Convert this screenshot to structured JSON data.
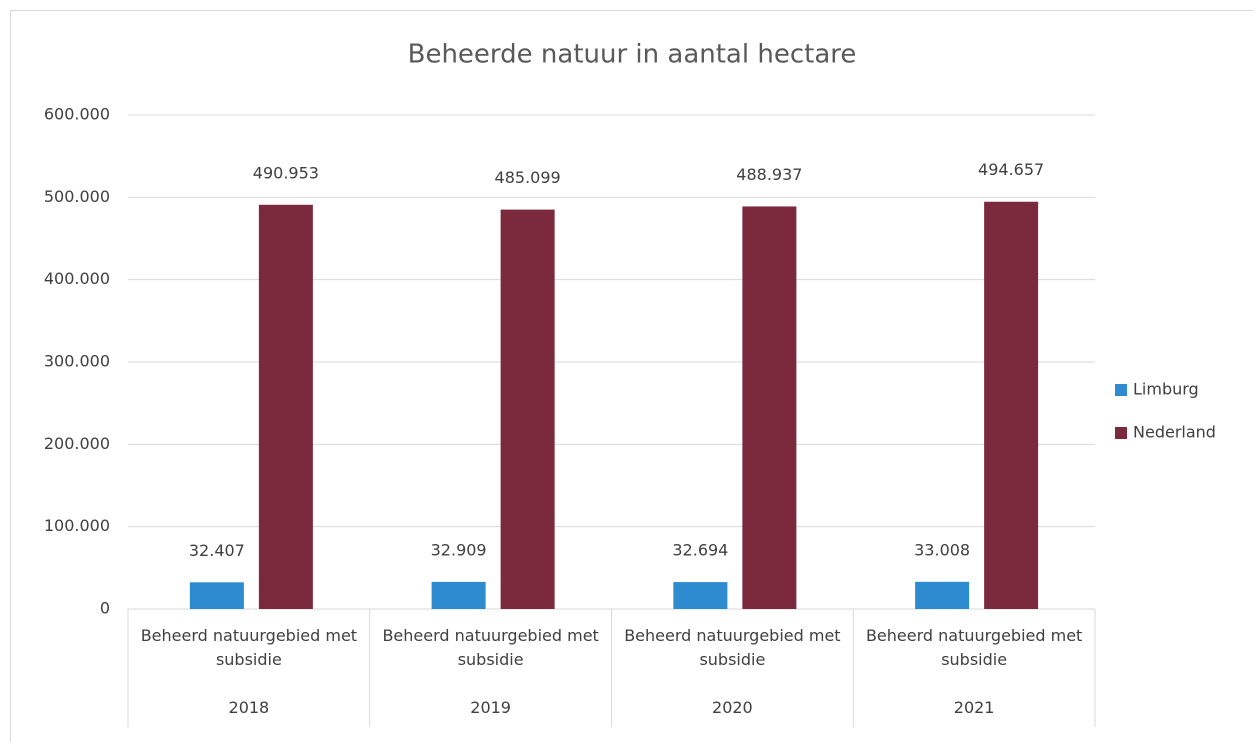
{
  "chart_data": {
    "type": "bar",
    "title": "Beheerde natuur in aantal hectare",
    "categories": [
      "Beheerd natuurgebied met subsidie",
      "Beheerd natuurgebied met subsidie",
      "Beheerd natuurgebied met subsidie",
      "Beheerd natuurgebied met subsidie"
    ],
    "groups": [
      "2018",
      "2019",
      "2020",
      "2021"
    ],
    "series": [
      {
        "name": "Limburg",
        "color": "#2e8bd0",
        "values": [
          32407,
          32909,
          32694,
          33008
        ],
        "value_labels": [
          "32.407",
          "32.909",
          "32.694",
          "33.008"
        ]
      },
      {
        "name": "Nederland",
        "color": "#7b2a3e",
        "values": [
          490953,
          485099,
          488937,
          494657
        ],
        "value_labels": [
          "490.953",
          "485.099",
          "488.937",
          "494.657"
        ]
      }
    ],
    "ylim": [
      0,
      600000
    ],
    "yticks": [
      0,
      {
        "value": 100000,
        "label": "100.000"
      },
      {
        "value": 200000,
        "label": "200.000"
      },
      {
        "value": 300000,
        "label": "300.000"
      },
      {
        "value": 400000,
        "label": "400.000"
      },
      {
        "value": 500000,
        "label": "500.000"
      },
      {
        "value": 600000,
        "label": "600.000"
      }
    ],
    "grid": true,
    "legend": "right"
  }
}
